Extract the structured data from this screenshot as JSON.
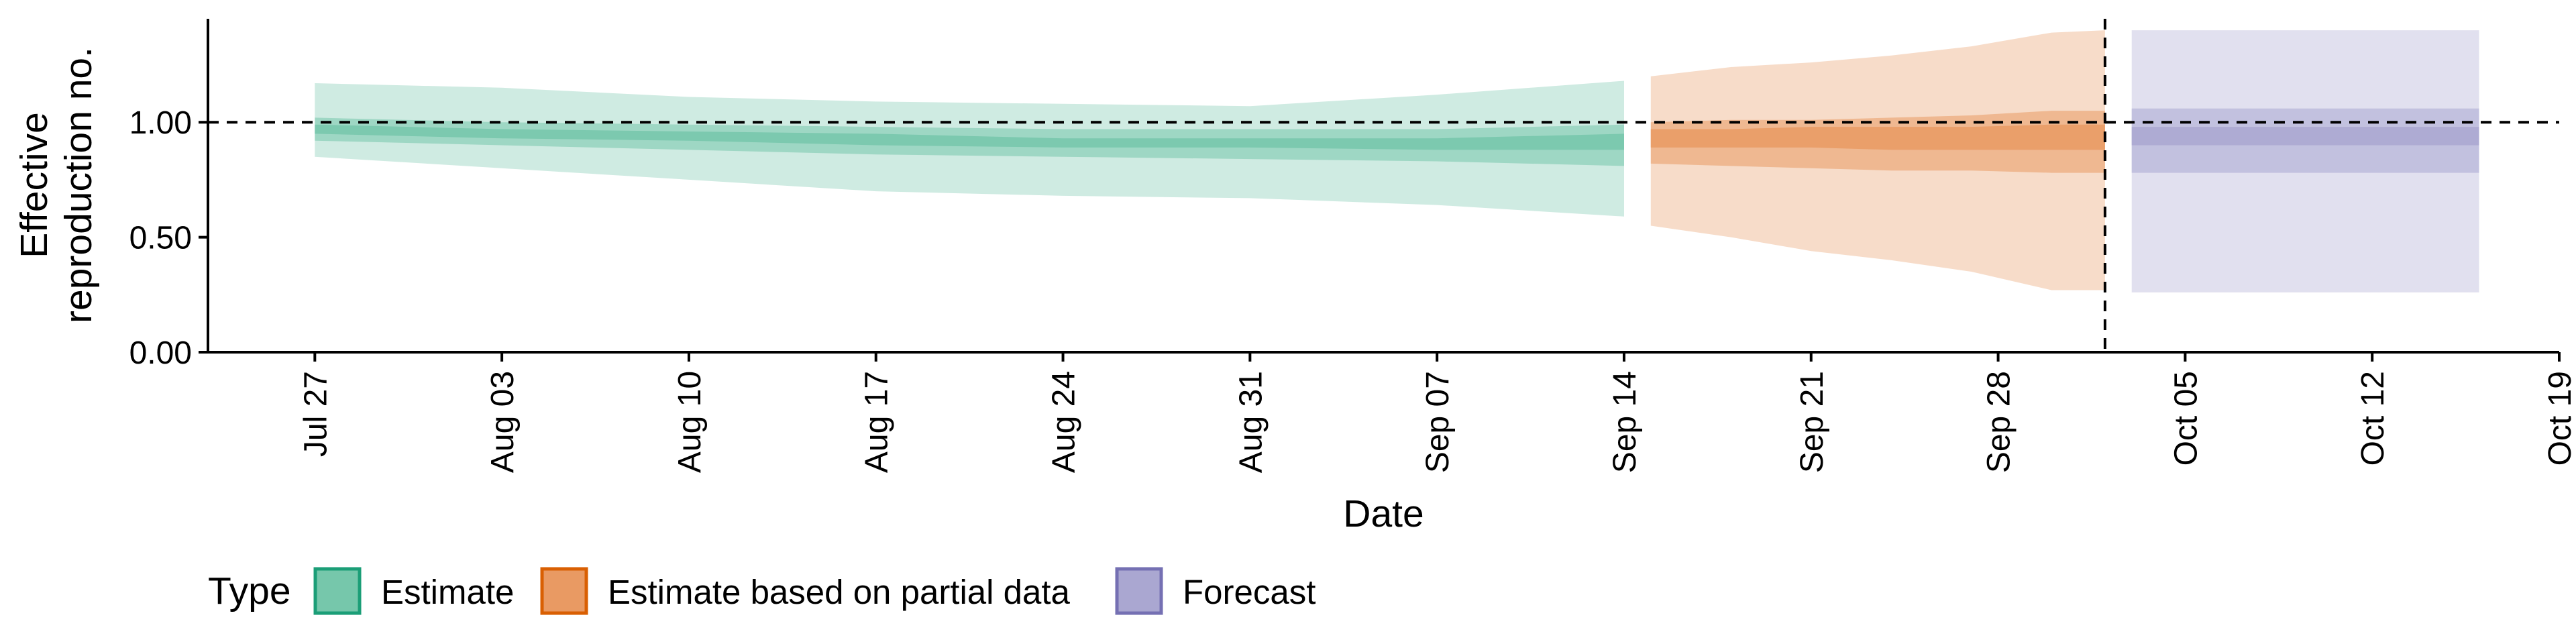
{
  "chart_data": {
    "type": "area",
    "title": "",
    "xlabel": "Date",
    "ylabel_lines": [
      "Effective",
      "reproduction no."
    ],
    "ylim": [
      0,
      1.45
    ],
    "y_ticks": [
      {
        "value": 0.0,
        "label": "0.00"
      },
      {
        "value": 0.5,
        "label": "0.50"
      },
      {
        "value": 1.0,
        "label": "1.00"
      }
    ],
    "x_domain": [
      "2020-07-23",
      "2020-10-19"
    ],
    "x_ticks": [
      {
        "date": "2020-07-27",
        "label": "Jul 27"
      },
      {
        "date": "2020-08-03",
        "label": "Aug 03"
      },
      {
        "date": "2020-08-10",
        "label": "Aug 10"
      },
      {
        "date": "2020-08-17",
        "label": "Aug 17"
      },
      {
        "date": "2020-08-24",
        "label": "Aug 24"
      },
      {
        "date": "2020-08-31",
        "label": "Aug 31"
      },
      {
        "date": "2020-09-07",
        "label": "Sep 07"
      },
      {
        "date": "2020-09-14",
        "label": "Sep 14"
      },
      {
        "date": "2020-09-21",
        "label": "Sep 21"
      },
      {
        "date": "2020-09-28",
        "label": "Sep 28"
      },
      {
        "date": "2020-10-05",
        "label": "Oct 05"
      },
      {
        "date": "2020-10-12",
        "label": "Oct 12"
      },
      {
        "date": "2020-10-19",
        "label": "Oct 19"
      }
    ],
    "reference_line_y": 1.0,
    "forecast_start_line_x": "2020-10-02",
    "legend": {
      "title": "Type",
      "position": "bottom",
      "items": [
        "Estimate",
        "Estimate based on partial data",
        "Forecast"
      ]
    },
    "series": [
      {
        "name": "Estimate",
        "color": "#1b9e77",
        "fill_color": "#76c7ab",
        "x": [
          "2020-07-27",
          "2020-08-03",
          "2020-08-10",
          "2020-08-17",
          "2020-08-24",
          "2020-08-31",
          "2020-09-07",
          "2020-09-14"
        ],
        "outer_lower": [
          0.85,
          0.8,
          0.75,
          0.7,
          0.68,
          0.67,
          0.64,
          0.59
        ],
        "outer_upper": [
          1.17,
          1.15,
          1.11,
          1.09,
          1.08,
          1.07,
          1.12,
          1.18
        ],
        "mid_lower": [
          0.92,
          0.9,
          0.88,
          0.86,
          0.85,
          0.84,
          0.83,
          0.81
        ],
        "mid_upper": [
          1.02,
          1.0,
          0.99,
          0.98,
          0.97,
          0.97,
          0.97,
          0.99
        ],
        "inner_lower": [
          0.95,
          0.93,
          0.92,
          0.9,
          0.89,
          0.89,
          0.88,
          0.88
        ],
        "inner_upper": [
          0.99,
          0.97,
          0.96,
          0.95,
          0.93,
          0.93,
          0.93,
          0.95
        ]
      },
      {
        "name": "Estimate based on partial data",
        "color": "#d95f02",
        "fill_color": "#e99a63",
        "x": [
          "2020-09-15",
          "2020-09-18",
          "2020-09-21",
          "2020-09-24",
          "2020-09-27",
          "2020-09-30",
          "2020-10-02"
        ],
        "outer_lower": [
          0.55,
          0.5,
          0.44,
          0.4,
          0.35,
          0.27,
          0.27
        ],
        "outer_upper": [
          1.2,
          1.24,
          1.26,
          1.29,
          1.33,
          1.39,
          1.4
        ],
        "mid_lower": [
          0.82,
          0.81,
          0.8,
          0.79,
          0.79,
          0.78,
          0.78
        ],
        "mid_upper": [
          1.0,
          1.01,
          1.01,
          1.02,
          1.03,
          1.05,
          1.05
        ],
        "inner_lower": [
          0.89,
          0.89,
          0.89,
          0.88,
          0.88,
          0.88,
          0.88
        ],
        "inner_upper": [
          0.97,
          0.97,
          0.98,
          0.98,
          0.98,
          0.99,
          0.99
        ]
      },
      {
        "name": "Forecast",
        "color": "#7570b3",
        "fill_color": "#aaa7d1",
        "x": [
          "2020-10-03",
          "2020-10-16"
        ],
        "outer_lower": [
          0.26,
          0.26
        ],
        "outer_upper": [
          1.4,
          1.4
        ],
        "mid_lower": [
          0.78,
          0.78
        ],
        "mid_upper": [
          1.06,
          1.06
        ],
        "inner_lower": [
          0.9,
          0.9
        ],
        "inner_upper": [
          0.98,
          0.98
        ]
      }
    ]
  }
}
